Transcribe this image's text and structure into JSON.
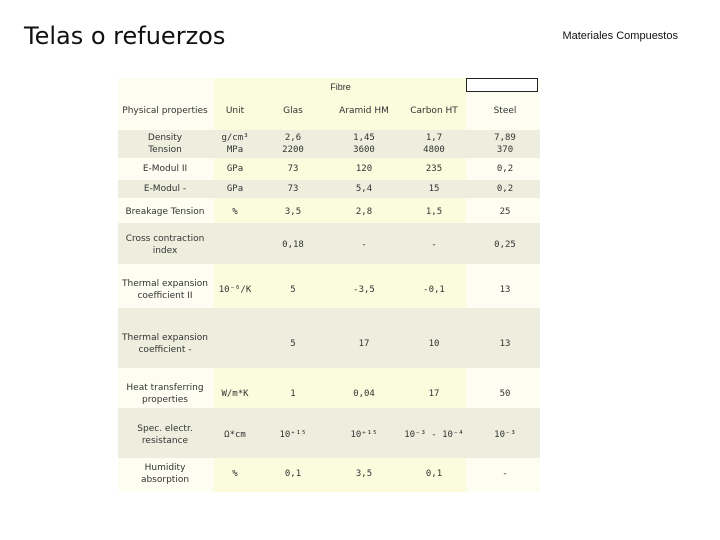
{
  "header": {
    "title": "Telas o refuerzos",
    "subtitle": "Materiales Compuestos"
  },
  "table": {
    "group_label": "Fibre",
    "columns": [
      "Physical properties",
      "Unit",
      "Glas",
      "Aramid HM",
      "Carbon HT",
      "Steel"
    ],
    "rows": [
      {
        "property": "Density\nTension",
        "unit": "g/cm³\nMPa",
        "glas": "2,6\n2200",
        "aramid": "1,45\n3600",
        "carbon": "1,7\n4800",
        "steel": "7,89\n370"
      },
      {
        "property": "E-Modul II",
        "unit": "GPa",
        "glas": "73",
        "aramid": "120",
        "carbon": "235",
        "steel": "0,2"
      },
      {
        "property": "E-Modul -",
        "unit": "GPa",
        "glas": "73",
        "aramid": "5,4",
        "carbon": "15",
        "steel": "0,2"
      },
      {
        "property": "Breakage Tension",
        "unit": "%",
        "glas": "3,5",
        "aramid": "2,8",
        "carbon": "1,5",
        "steel": "25"
      },
      {
        "property": "Cross contraction\nindex",
        "unit": "",
        "glas": "0,18",
        "aramid": "-",
        "carbon": "-",
        "steel": "0,25"
      },
      {
        "property": "Thermal expansion\ncoefficient II",
        "unit": "10⁻⁶/K",
        "glas": "5",
        "aramid": "-3,5",
        "carbon": "-0,1",
        "steel": "13"
      },
      {
        "property": "Thermal expansion\ncoefficient -",
        "unit": "",
        "glas": "5",
        "aramid": "17",
        "carbon": "10",
        "steel": "13"
      },
      {
        "property": "Heat transferring\nproperties",
        "unit": "W/m*K",
        "glas": "1",
        "aramid": "0,04",
        "carbon": "17",
        "steel": "50"
      },
      {
        "property": "Spec. electr.\nresistance",
        "unit": "Ω*cm",
        "glas": "10⁺¹⁵",
        "aramid": "10⁺¹⁵",
        "carbon": "10⁻³ - 10⁻⁴",
        "steel": "10⁻³"
      },
      {
        "property": "Humidity\nabsorption",
        "unit": "%",
        "glas": "0,1",
        "aramid": "3,5",
        "carbon": "0,1",
        "steel": "-"
      }
    ]
  }
}
